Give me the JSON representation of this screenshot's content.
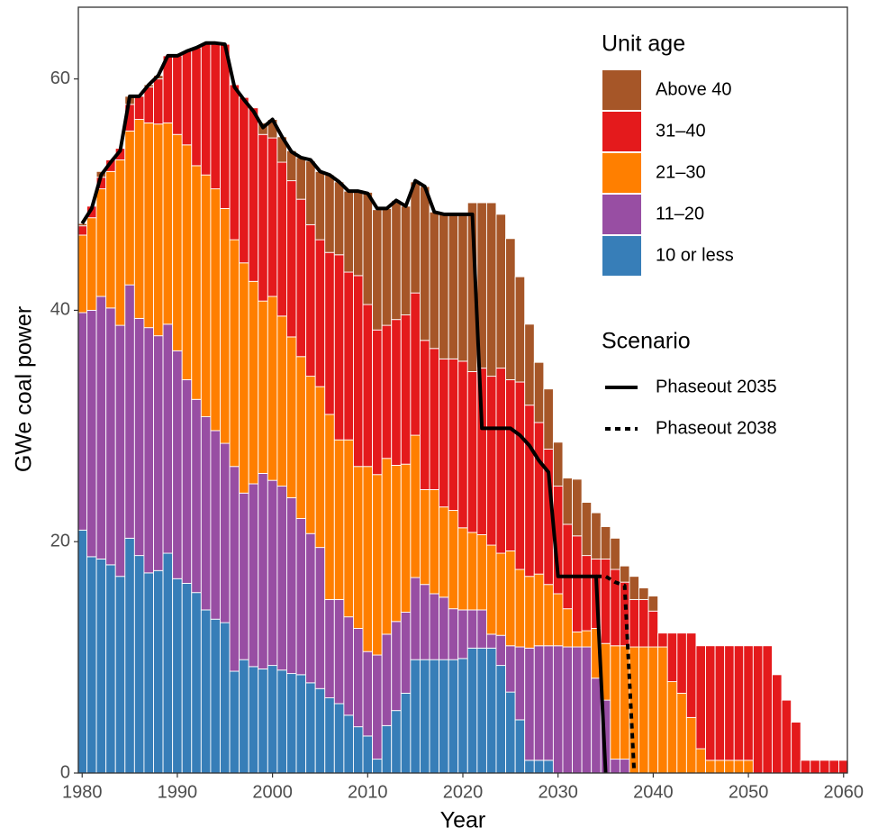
{
  "chart_data": {
    "type": "bar",
    "stacked": true,
    "xlabel": "Year",
    "ylabel": "GWe coal power",
    "legend_title": "Unit age",
    "line_legend_title": "Scenario",
    "xlim": [
      1979.6,
      2060.4
    ],
    "ylim": [
      0,
      66.2
    ],
    "xticks": [
      1980,
      1990,
      2000,
      2010,
      2020,
      2030,
      2040,
      2050,
      2060
    ],
    "yticks": [
      0,
      20,
      40,
      60
    ],
    "grid": false,
    "x": [
      1980,
      1981,
      1982,
      1983,
      1984,
      1985,
      1986,
      1987,
      1988,
      1989,
      1990,
      1991,
      1992,
      1993,
      1994,
      1995,
      1996,
      1997,
      1998,
      1999,
      2000,
      2001,
      2002,
      2003,
      2004,
      2005,
      2006,
      2007,
      2008,
      2009,
      2010,
      2011,
      2012,
      2013,
      2014,
      2015,
      2016,
      2017,
      2018,
      2019,
      2020,
      2021,
      2022,
      2023,
      2024,
      2025,
      2026,
      2027,
      2028,
      2029,
      2030,
      2031,
      2032,
      2033,
      2034,
      2035,
      2036,
      2037,
      2038,
      2039,
      2040,
      2041,
      2042,
      2043,
      2044,
      2045,
      2046,
      2047,
      2048,
      2049,
      2050,
      2051,
      2052,
      2053,
      2054,
      2055,
      2056,
      2057,
      2058,
      2059,
      2060
    ],
    "series": [
      {
        "name": "10 or less",
        "color": "#377eb8",
        "values": [
          21.0,
          18.7,
          18.5,
          18.0,
          17.0,
          20.3,
          18.8,
          17.3,
          17.5,
          19.0,
          16.8,
          16.4,
          15.6,
          14.1,
          13.3,
          13.0,
          8.8,
          9.8,
          9.2,
          9.0,
          9.3,
          8.9,
          8.6,
          8.5,
          7.8,
          7.3,
          6.5,
          6.0,
          5.0,
          4.0,
          3.2,
          1.2,
          4.1,
          5.4,
          6.9,
          9.8,
          9.8,
          9.8,
          9.8,
          9.8,
          9.9,
          10.8,
          10.8,
          10.8,
          9.3,
          7.0,
          4.6,
          1.1,
          1.1,
          1.1,
          0,
          0,
          0,
          0,
          0,
          0,
          0,
          0,
          0,
          0,
          0,
          0,
          0,
          0,
          0,
          0,
          0,
          0,
          0,
          0,
          0,
          0,
          0,
          0,
          0,
          0,
          0,
          0,
          0,
          0,
          0
        ]
      },
      {
        "name": "11–20",
        "color": "#984ea3",
        "values": [
          18.8,
          21.3,
          22.7,
          22.2,
          21.7,
          21.9,
          20.5,
          21.2,
          20.3,
          19.8,
          19.7,
          17.6,
          16.7,
          16.7,
          16.3,
          15.5,
          17.7,
          14.4,
          15.8,
          16.9,
          16.0,
          15.9,
          15.2,
          13.5,
          12.9,
          12.2,
          8.5,
          9.0,
          8.5,
          8.5,
          7.3,
          9.0,
          7.9,
          7.7,
          7.0,
          7.1,
          6.5,
          5.7,
          5.4,
          4.4,
          4.2,
          3.3,
          3.3,
          1.2,
          2.6,
          4.0,
          6.3,
          9.7,
          9.9,
          9.9,
          11.0,
          10.9,
          10.9,
          10.9,
          8.2,
          6.3,
          1.2,
          1.2,
          0,
          0,
          0,
          0,
          0,
          0,
          0,
          0,
          0,
          0,
          0,
          0,
          0,
          0,
          0,
          0,
          0,
          0,
          0,
          0,
          0,
          0,
          0
        ]
      },
      {
        "name": "21–30",
        "color": "#ff7f00",
        "values": [
          6.7,
          8.0,
          9.3,
          11.8,
          14.3,
          13.3,
          17.2,
          17.7,
          18.3,
          17.4,
          18.7,
          20.3,
          20.2,
          20.9,
          20.9,
          20.3,
          19.6,
          19.9,
          17.5,
          14.9,
          15.9,
          14.7,
          13.9,
          14.0,
          13.6,
          13.9,
          16.0,
          13.8,
          15.3,
          14.0,
          16.0,
          15.6,
          15.2,
          13.5,
          12.8,
          12.3,
          8.2,
          9.0,
          7.8,
          8.5,
          7.1,
          6.7,
          6.5,
          7.7,
          7.1,
          8.2,
          6.7,
          6.2,
          6.2,
          5.3,
          4.5,
          3.3,
          1.3,
          1.4,
          4.3,
          4.9,
          9.8,
          9.8,
          10.9,
          10.9,
          10.9,
          10.9,
          7.9,
          6.9,
          4.8,
          2.1,
          1.1,
          1.1,
          1.1,
          1.1,
          1.1,
          0,
          0,
          0,
          0,
          0,
          0,
          0,
          0,
          0,
          0
        ]
      },
      {
        "name": "31–40",
        "color": "#e41a1c",
        "values": [
          0.8,
          1.0,
          1.0,
          1.0,
          1.0,
          2.3,
          2.0,
          3.1,
          3.9,
          5.8,
          6.8,
          8.1,
          10.2,
          11.4,
          12.6,
          14.2,
          13.4,
          14.3,
          15.0,
          14.4,
          13.7,
          13.3,
          13.5,
          13.6,
          13.1,
          12.7,
          14.0,
          16.0,
          14.5,
          16.5,
          14.0,
          12.5,
          11.5,
          12.6,
          12.9,
          12.3,
          12.9,
          12.2,
          12.8,
          13.1,
          14.4,
          13.9,
          14.4,
          14.6,
          16.0,
          14.8,
          16.2,
          14.8,
          13.1,
          11.7,
          9.3,
          7.3,
          8.3,
          6.5,
          6.0,
          7.3,
          6.6,
          5.5,
          4.1,
          4.1,
          3.1,
          1.2,
          4.2,
          5.2,
          7.3,
          8.9,
          9.9,
          9.9,
          9.9,
          9.9,
          9.9,
          11.0,
          11.0,
          8.5,
          6.3,
          4.4,
          1.1,
          1.1,
          1.1,
          1.1,
          1.1
        ]
      },
      {
        "name": "Above 40",
        "color": "#a65628",
        "values": [
          0.2,
          0,
          0.5,
          0,
          0,
          0.7,
          0,
          0.2,
          0.3,
          0,
          0,
          0,
          0,
          0,
          0,
          0,
          0,
          0,
          0,
          1.0,
          1.6,
          2.2,
          2.6,
          3.6,
          5.5,
          5.9,
          6.7,
          6.3,
          7.0,
          7.4,
          9.7,
          10.4,
          10.1,
          10.3,
          9.4,
          9.6,
          13.3,
          11.8,
          12.6,
          12.6,
          12.8,
          14.6,
          14.3,
          15.0,
          13.3,
          12.2,
          9.1,
          7.0,
          5.2,
          5.2,
          3.8,
          4.0,
          4.9,
          4.6,
          4.0,
          2.8,
          2.7,
          1.4,
          2.0,
          1.0,
          1.3,
          0,
          0,
          0,
          0,
          0,
          0,
          0,
          0,
          0,
          0,
          0,
          0,
          0,
          0,
          0,
          0,
          0,
          0,
          0,
          0
        ]
      }
    ],
    "lines": [
      {
        "name": "Phaseout 2035",
        "color": "#000000",
        "dashed": false,
        "x": [
          1980,
          1981,
          1982,
          1983,
          1984,
          1985,
          1986,
          1987,
          1988,
          1989,
          1990,
          1991,
          1992,
          1993,
          1994,
          1995,
          1996,
          1997,
          1998,
          1999,
          2000,
          2001,
          2002,
          2003,
          2004,
          2005,
          2006,
          2007,
          2008,
          2009,
          2010,
          2011,
          2012,
          2013,
          2014,
          2015,
          2016,
          2017,
          2018,
          2019,
          2020,
          2021,
          2022,
          2023,
          2024,
          2025,
          2026,
          2027,
          2028,
          2029,
          2030,
          2031,
          2032,
          2033,
          2034,
          2035
        ],
        "values": [
          47.5,
          48.8,
          51.7,
          52.8,
          53.8,
          58.5,
          58.5,
          59.5,
          60.3,
          62,
          62,
          62.4,
          62.7,
          63.1,
          63.1,
          63,
          59.3,
          58.2,
          57.2,
          55.8,
          56.5,
          55,
          53.7,
          53.2,
          53,
          52,
          51.7,
          51.1,
          50.3,
          50.3,
          50.1,
          48.8,
          48.8,
          49.5,
          49,
          51.2,
          50.7,
          48.5,
          48.3,
          48.3,
          48.3,
          48.3,
          29.8,
          29.8,
          29.8,
          29.8,
          29.2,
          28.3,
          27,
          26,
          17,
          17,
          17,
          17,
          17,
          0
        ]
      },
      {
        "name": "Phaseout 2038",
        "color": "#000000",
        "dashed": true,
        "x": [
          2034,
          2035,
          2036,
          2037,
          2038
        ],
        "values": [
          17,
          17,
          16.5,
          16.2,
          0
        ]
      }
    ]
  }
}
